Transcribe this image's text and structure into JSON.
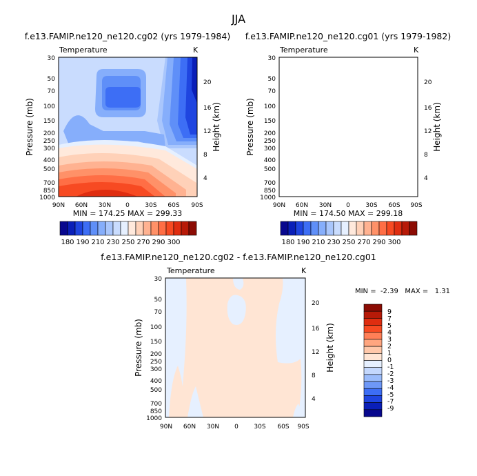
{
  "figure_title": "JJA",
  "chart_data": [
    {
      "type": "heatmap",
      "title": "f.e13.FAMIP.ne120_ne120.cg02 (yrs 1979-1984)",
      "subtitle": "Temperature",
      "units": "K",
      "ylabel": "Pressure (mb)",
      "y2label": "Height (km)",
      "x_ticks": [
        "90N",
        "60N",
        "30N",
        "0",
        "30S",
        "60S",
        "90S"
      ],
      "y_ticks": [
        "30",
        "50",
        "70",
        "100",
        "150",
        "200",
        "250",
        "300",
        "400",
        "500",
        "700",
        "850",
        "1000"
      ],
      "y2_ticks": [
        "4",
        "8",
        "12",
        "16",
        "20"
      ],
      "stats": "MIN = 174.25   MAX = 299.33",
      "min": 174.25,
      "max": 299.33
    },
    {
      "type": "heatmap",
      "title": "f.e13.FAMIP.ne120_ne120.cg01 (yrs 1979-1982)",
      "subtitle": "Temperature",
      "units": "K",
      "ylabel": "Pressure (mb)",
      "y2label": "Height (km)",
      "x_ticks": [
        "90N",
        "60N",
        "30N",
        "0",
        "30S",
        "60S",
        "90S"
      ],
      "y_ticks": [
        "30",
        "50",
        "70",
        "100",
        "150",
        "200",
        "250",
        "300",
        "400",
        "500",
        "700",
        "850",
        "1000"
      ],
      "y2_ticks": [
        "4",
        "8",
        "12",
        "16",
        "20"
      ],
      "stats": "MIN = 174.50   MAX = 299.18",
      "min": 174.5,
      "max": 299.18
    },
    {
      "type": "heatmap",
      "title": "f.e13.FAMIP.ne120_ne120.cg02 - f.e13.FAMIP.ne120_ne120.cg01",
      "subtitle": "Temperature",
      "units": "K",
      "ylabel": "Pressure (mb)",
      "y2label": "Height (km)",
      "x_ticks": [
        "90N",
        "60N",
        "30N",
        "0",
        "30S",
        "60S",
        "90S"
      ],
      "y_ticks": [
        "30",
        "50",
        "70",
        "100",
        "150",
        "200",
        "250",
        "300",
        "400",
        "500",
        "700",
        "850",
        "1000"
      ],
      "y2_ticks": [
        "4",
        "8",
        "12",
        "16",
        "20"
      ],
      "stats": "MIN =  -2.39   MAX =   1.31",
      "min": -2.39,
      "max": 1.31
    }
  ],
  "temp_colorbar": {
    "labels": [
      "180",
      "190",
      "210",
      "230",
      "250",
      "270",
      "290",
      "300"
    ],
    "colors": [
      "#08088e",
      "#0a1fb8",
      "#1f45e0",
      "#3d6ef5",
      "#5f8ff8",
      "#86aefb",
      "#a9c6fc",
      "#c9dcfe",
      "#e6f0ff",
      "#ffe9dc",
      "#ffd1b8",
      "#ffb291",
      "#ff9168",
      "#ff6e45",
      "#f74a22",
      "#df2d10",
      "#b71a08",
      "#8c0c04"
    ]
  },
  "diff_colorbar": {
    "labels": [
      "9",
      "7",
      "5",
      "4",
      "3",
      "2",
      "1",
      "0",
      "-1",
      "-2",
      "-3",
      "-4",
      "-5",
      "-7",
      "-9"
    ],
    "colors": [
      "#8c0c04",
      "#b71a08",
      "#df2d10",
      "#f74a22",
      "#ff7f57",
      "#ffa680",
      "#ffc8aa",
      "#ffe5d4",
      "#e6f0ff",
      "#c4d8fd",
      "#9bbcfb",
      "#6e98f7",
      "#3d6ef5",
      "#1f45e0",
      "#0a1fb8",
      "#08088e"
    ]
  }
}
